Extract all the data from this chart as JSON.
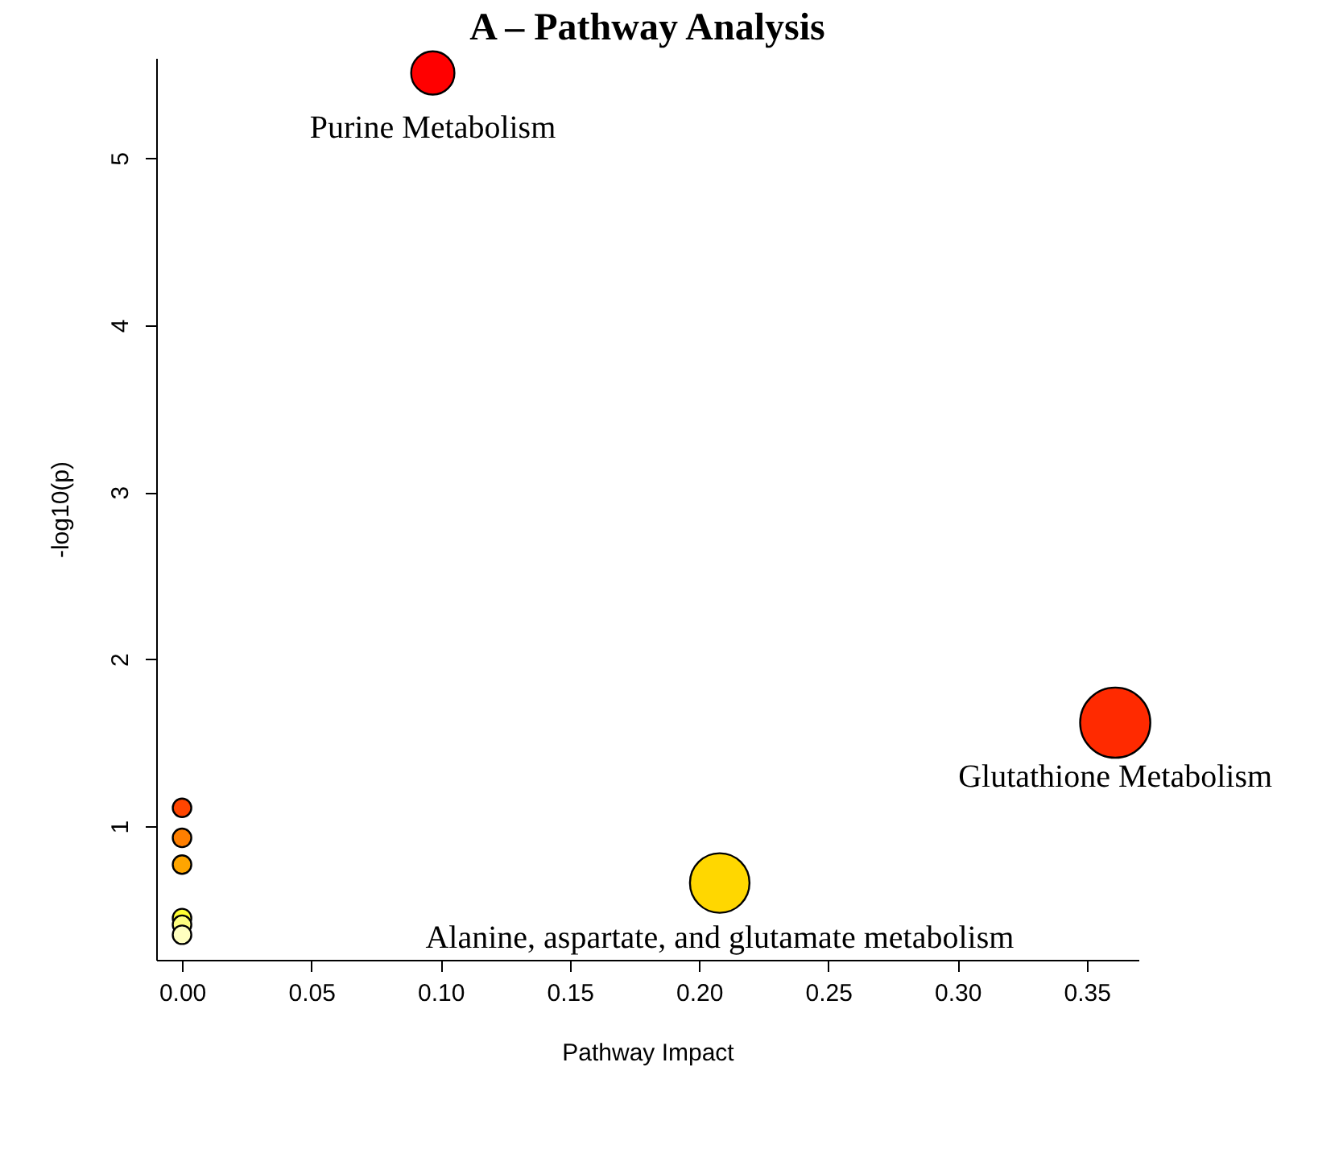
{
  "chart_data": {
    "type": "bubble",
    "title": "A – Pathway Analysis",
    "xlabel": "Pathway Impact",
    "ylabel": "-log10(p)",
    "x": [
      0.097,
      0.361,
      0.208,
      0,
      0,
      0,
      0,
      0,
      0
    ],
    "values": [
      5.51,
      1.62,
      0.66,
      1.11,
      0.93,
      0.77,
      0.45,
      0.41,
      0.35
    ],
    "sizes": [
      0.38,
      1,
      0.72,
      0.07,
      0.07,
      0.07,
      0.07,
      0.07,
      0.07
    ],
    "colors": [
      "#ff0000",
      "#ff2a00",
      "#ffd700",
      "#ff4500",
      "#ff7f00",
      "#ffa500",
      "#ffff33",
      "#ffff80",
      "#ffffc0"
    ],
    "xlim": [
      -0.01,
      0.37
    ],
    "ylim": [
      0.2,
      5.6
    ],
    "xticks": [
      {
        "value": 0,
        "label": "0.00"
      },
      {
        "value": 0.05,
        "label": "0.05"
      },
      {
        "value": 0.1,
        "label": "0.10"
      },
      {
        "value": 0.15,
        "label": "0.15"
      },
      {
        "value": 0.2,
        "label": "0.20"
      },
      {
        "value": 0.25,
        "label": "0.25"
      },
      {
        "value": 0.3,
        "label": "0.30"
      },
      {
        "value": 0.35,
        "label": "0.35"
      }
    ],
    "yticks": [
      1,
      2,
      3,
      4,
      5
    ],
    "grid": false,
    "annotations": [
      {
        "text": "Purine Metabolism",
        "x": 0.097,
        "y": 5.51
      },
      {
        "text": "Glutathione Metabolism",
        "x": 0.361,
        "y": 1.62
      },
      {
        "text": "Alanine, aspartate, and glutamate metabolism",
        "x": 0.208,
        "y": 0.66
      }
    ]
  }
}
